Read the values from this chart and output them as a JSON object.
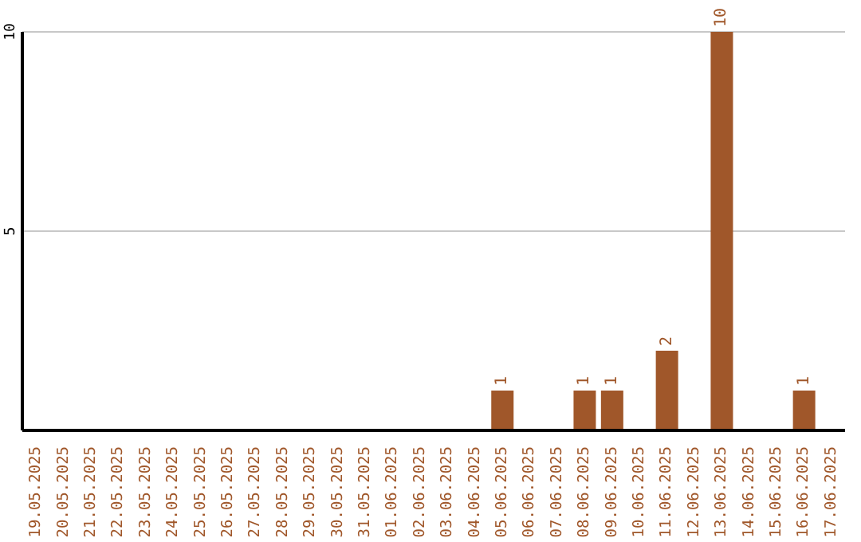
{
  "chart_data": {
    "type": "bar",
    "categories": [
      "19.05.2025",
      "20.05.2025",
      "21.05.2025",
      "22.05.2025",
      "23.05.2025",
      "24.05.2025",
      "25.05.2025",
      "26.05.2025",
      "27.05.2025",
      "28.05.2025",
      "29.05.2025",
      "30.05.2025",
      "31.05.2025",
      "01.06.2025",
      "02.06.2025",
      "03.06.2025",
      "04.06.2025",
      "05.06.2025",
      "06.06.2025",
      "07.06.2025",
      "08.06.2025",
      "09.06.2025",
      "10.06.2025",
      "11.06.2025",
      "12.06.2025",
      "13.06.2025",
      "14.06.2025",
      "15.06.2025",
      "16.06.2025",
      "17.06.2025"
    ],
    "values": [
      0,
      0,
      0,
      0,
      0,
      0,
      0,
      0,
      0,
      0,
      0,
      0,
      0,
      0,
      0,
      0,
      0,
      1,
      0,
      0,
      1,
      1,
      0,
      2,
      0,
      10,
      0,
      0,
      1,
      0
    ],
    "value_labels": [
      null,
      null,
      null,
      null,
      null,
      null,
      null,
      null,
      null,
      null,
      null,
      null,
      null,
      null,
      null,
      null,
      null,
      "1",
      null,
      null,
      "1",
      "1",
      null,
      "2",
      null,
      "10",
      null,
      null,
      "1",
      null
    ],
    "color": "#a0572a",
    "ylim": [
      0,
      10
    ],
    "yticks": [
      5,
      10
    ],
    "grid": "y"
  }
}
